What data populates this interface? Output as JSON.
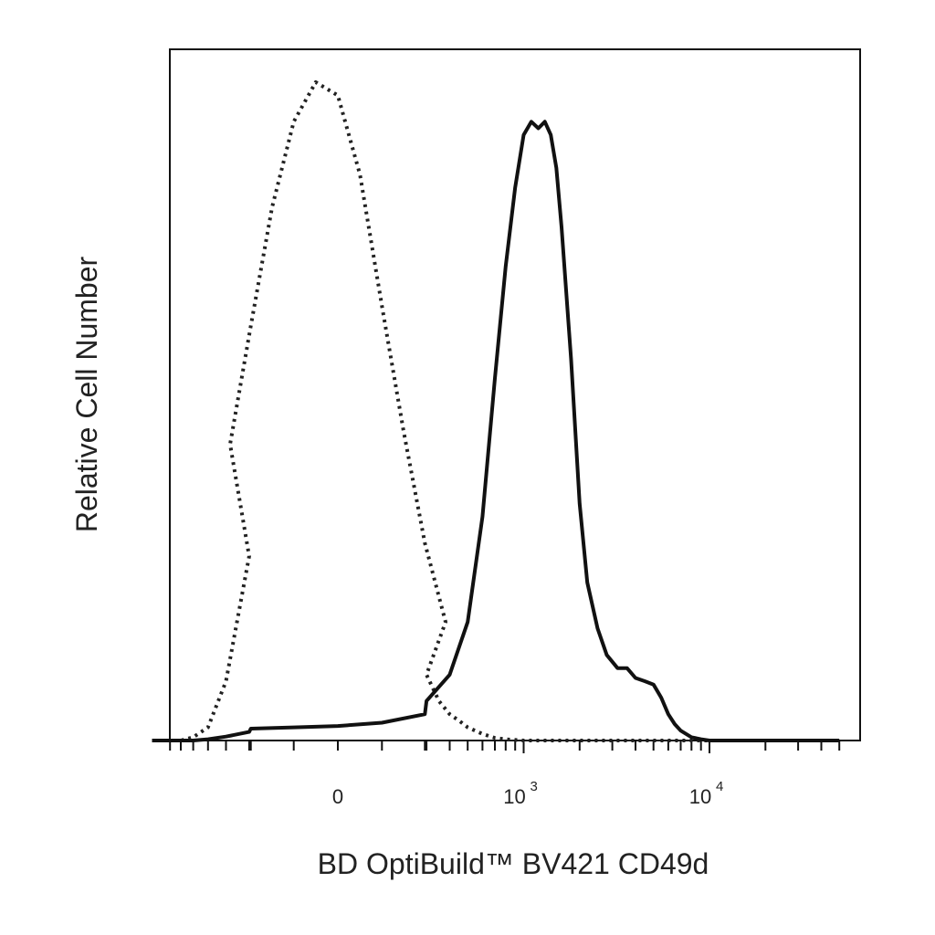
{
  "chart_data": {
    "type": "line",
    "title": "",
    "xlabel": "BD OptiBuild™ BV421 CD49d",
    "ylabel": "Relative Cell Number",
    "x_scale": "biexponential",
    "xlim": [
      -1000,
      50000
    ],
    "ylim": [
      0,
      1.05
    ],
    "grid": false,
    "legend": "none",
    "x_ticks": [
      {
        "value": 0,
        "label": "0"
      },
      {
        "value": 1000,
        "base": "10",
        "exp": "3"
      },
      {
        "value": 10000,
        "base": "10",
        "exp": "4"
      }
    ],
    "series": [
      {
        "style": "dotted",
        "color": "#222222",
        "x": [
          -1000,
          -700,
          -600,
          -500,
          -400,
          -300,
          -250,
          -200,
          -150,
          -100,
          -50,
          0,
          50,
          100,
          150,
          200,
          250,
          300,
          350,
          400,
          450,
          500,
          600,
          700,
          800,
          1000,
          1500,
          2500,
          5000,
          20000,
          50000
        ],
        "y": [
          0.0,
          0.0,
          0.005,
          0.02,
          0.09,
          0.28,
          0.45,
          0.63,
          0.81,
          0.94,
          1.0,
          0.98,
          0.86,
          0.66,
          0.47,
          0.3,
          0.18,
          0.1,
          0.06,
          0.04,
          0.03,
          0.02,
          0.01,
          0.004,
          0.002,
          0.0,
          0.0,
          0.0,
          0.0,
          0.0,
          0.0
        ]
      },
      {
        "style": "solid",
        "color": "#111111",
        "x": [
          -1000,
          -600,
          -500,
          -400,
          -300,
          -200,
          -100,
          0,
          100,
          200,
          300,
          400,
          500,
          600,
          700,
          800,
          900,
          1000,
          1100,
          1200,
          1300,
          1400,
          1500,
          1600,
          1800,
          2000,
          2200,
          2500,
          2800,
          3200,
          3600,
          4000,
          4500,
          5000,
          5500,
          6000,
          6500,
          7000,
          8000,
          9000,
          10000,
          12000,
          15000,
          20000,
          30000,
          50000
        ],
        "y": [
          0.0,
          0.0,
          0.002,
          0.006,
          0.013,
          0.018,
          0.02,
          0.022,
          0.027,
          0.04,
          0.06,
          0.1,
          0.18,
          0.34,
          0.55,
          0.72,
          0.84,
          0.92,
          0.94,
          0.93,
          0.94,
          0.92,
          0.87,
          0.78,
          0.58,
          0.36,
          0.24,
          0.17,
          0.13,
          0.11,
          0.11,
          0.095,
          0.09,
          0.085,
          0.065,
          0.04,
          0.025,
          0.015,
          0.005,
          0.002,
          0.0,
          0.0,
          0.0,
          0.0,
          0.0,
          0.0
        ]
      }
    ]
  }
}
